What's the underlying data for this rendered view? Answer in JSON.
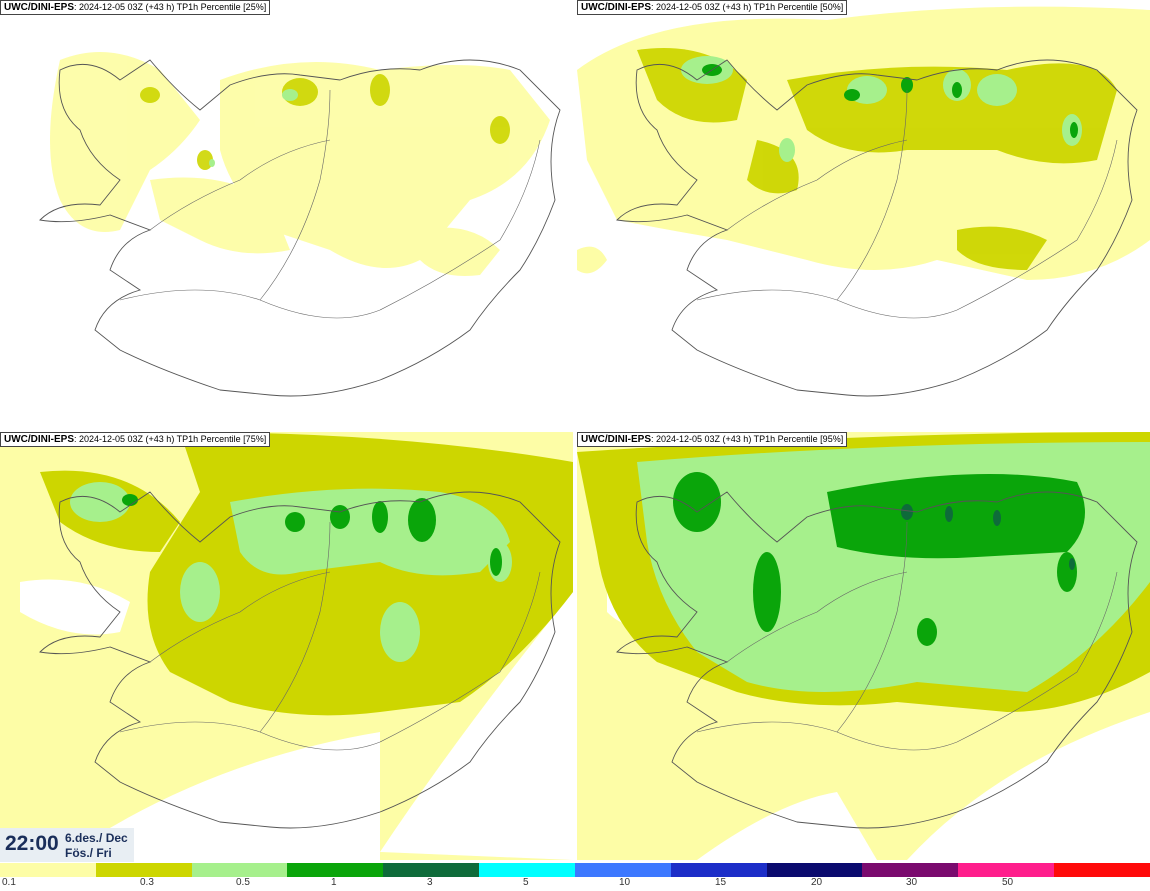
{
  "panels": [
    {
      "model": "UWC/DINI-EPS",
      "meta": ": 2024-12-05 03Z (+43 h) TP1h Percentile [25%]",
      "percentile": 25
    },
    {
      "model": "UWC/DINI-EPS",
      "meta": ": 2024-12-05 03Z (+43 h) TP1h Percentile [50%]",
      "percentile": 50
    },
    {
      "model": "UWC/DINI-EPS",
      "meta": ": 2024-12-05 03Z (+43 h) TP1h Percentile [75%]",
      "percentile": 75
    },
    {
      "model": "UWC/DINI-EPS",
      "meta": ": 2024-12-05 03Z (+43 h) TP1h Percentile [95%]",
      "percentile": 95
    }
  ],
  "valid_time": {
    "time": "22:00",
    "date": "6.des./ Dec",
    "day": "Fös./ Fri"
  },
  "legend": {
    "colors": [
      "#fdfda6",
      "#cdd600",
      "#a6f08c",
      "#0aa50a",
      "#0e6b3a",
      "#00ffff",
      "#3c78ff",
      "#1c2ec8",
      "#0a0a6e",
      "#7a0a6e",
      "#ff1e8c",
      "#ff0a0a"
    ],
    "ticks": [
      "0.1",
      "0.3",
      "0.5",
      "1",
      "3",
      "5",
      "10",
      "15",
      "20",
      "30",
      "50"
    ]
  },
  "map_colors": {
    "land_outline": "#555555",
    "road": "#666666",
    "water": "#ffffff"
  }
}
